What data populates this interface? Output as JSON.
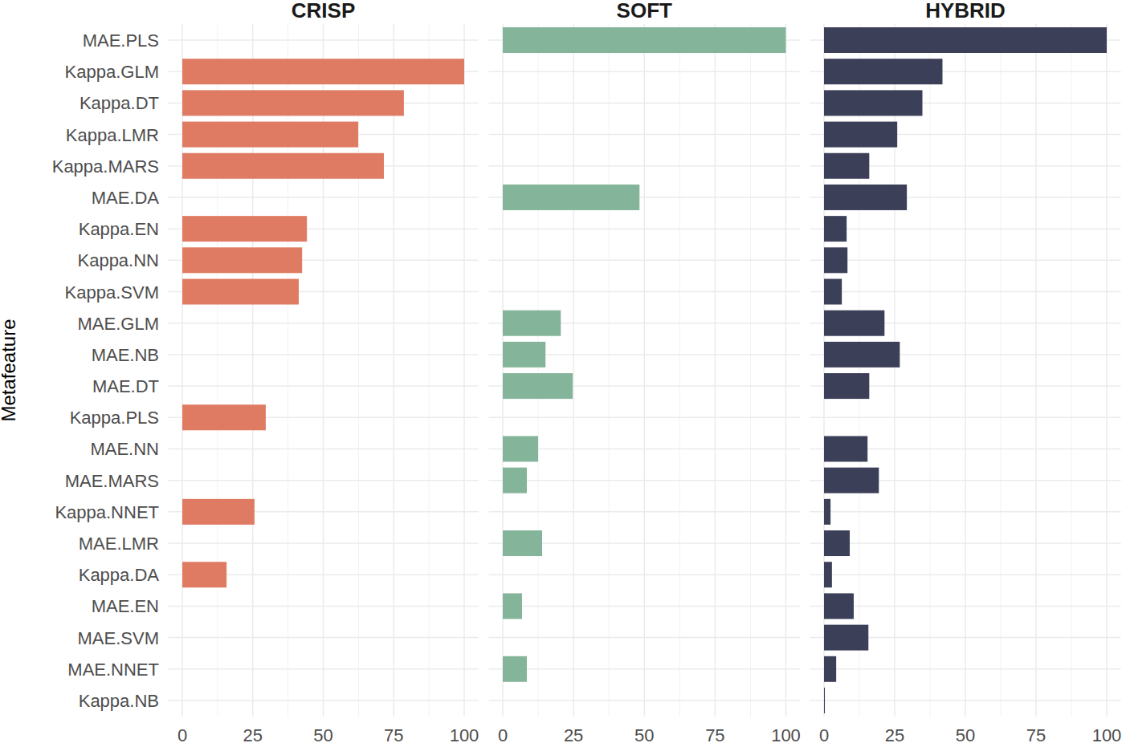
{
  "chart_data": [
    {
      "type": "bar",
      "orientation": "horizontal",
      "title": "CRISP",
      "ylabel": "Metafeature",
      "categories": [
        "MAE.PLS",
        "Kappa.GLM",
        "Kappa.DT",
        "Kappa.LMR",
        "Kappa.MARS",
        "MAE.DA",
        "Kappa.EN",
        "Kappa.NN",
        "Kappa.SVM",
        "MAE.GLM",
        "MAE.NB",
        "MAE.DT",
        "Kappa.PLS",
        "MAE.NN",
        "MAE.MARS",
        "Kappa.NNET",
        "MAE.LMR",
        "Kappa.DA",
        "MAE.EN",
        "MAE.SVM",
        "MAE.NNET",
        "Kappa.NB"
      ],
      "values": [
        null,
        100,
        78.6,
        62.4,
        71.5,
        null,
        44.2,
        42.5,
        41.3,
        null,
        null,
        null,
        29.6,
        null,
        null,
        25.6,
        null,
        15.7,
        null,
        null,
        null,
        null
      ],
      "color": "#e07b63",
      "xlim": [
        0,
        100
      ],
      "xticks": [
        0,
        25,
        50,
        75,
        100
      ],
      "grid": true,
      "tick_labels": true
    },
    {
      "type": "bar",
      "orientation": "horizontal",
      "title": "SOFT",
      "categories": [
        "MAE.PLS",
        "Kappa.GLM",
        "Kappa.DT",
        "Kappa.LMR",
        "Kappa.MARS",
        "MAE.DA",
        "Kappa.EN",
        "Kappa.NN",
        "Kappa.SVM",
        "MAE.GLM",
        "MAE.NB",
        "MAE.DT",
        "Kappa.PLS",
        "MAE.NN",
        "MAE.MARS",
        "Kappa.NNET",
        "MAE.LMR",
        "Kappa.DA",
        "MAE.EN",
        "MAE.SVM",
        "MAE.NNET",
        "Kappa.NB"
      ],
      "values": [
        100,
        null,
        null,
        null,
        null,
        48.3,
        null,
        null,
        null,
        20.5,
        15.1,
        24.7,
        null,
        12.5,
        8.5,
        null,
        13.9,
        null,
        6.8,
        null,
        8.5,
        null
      ],
      "color": "#84b59a",
      "xlim": [
        0,
        100
      ],
      "xticks": [
        0,
        25,
        50,
        75,
        100
      ],
      "grid": true,
      "tick_labels": "x"
    },
    {
      "type": "bar",
      "orientation": "horizontal",
      "title": "HYBRID",
      "categories": [
        "MAE.PLS",
        "Kappa.GLM",
        "Kappa.DT",
        "Kappa.LMR",
        "Kappa.MARS",
        "MAE.DA",
        "Kappa.EN",
        "Kappa.NN",
        "Kappa.SVM",
        "MAE.GLM",
        "MAE.NB",
        "MAE.DT",
        "Kappa.PLS",
        "MAE.NN",
        "MAE.MARS",
        "Kappa.NNET",
        "MAE.LMR",
        "Kappa.DA",
        "MAE.EN",
        "MAE.SVM",
        "MAE.NNET",
        "Kappa.NB"
      ],
      "values": [
        100,
        41.9,
        34.8,
        25.9,
        16.0,
        29.3,
        8.0,
        8.3,
        6.3,
        21.4,
        26.8,
        16.0,
        null,
        15.4,
        19.4,
        2.3,
        9.1,
        2.8,
        10.5,
        15.7,
        4.3,
        0.3
      ],
      "color": "#3c3f58",
      "xlim": [
        0,
        100
      ],
      "xticks": [
        0,
        25,
        50,
        75,
        100
      ],
      "grid": true,
      "tick_labels": "x"
    }
  ]
}
